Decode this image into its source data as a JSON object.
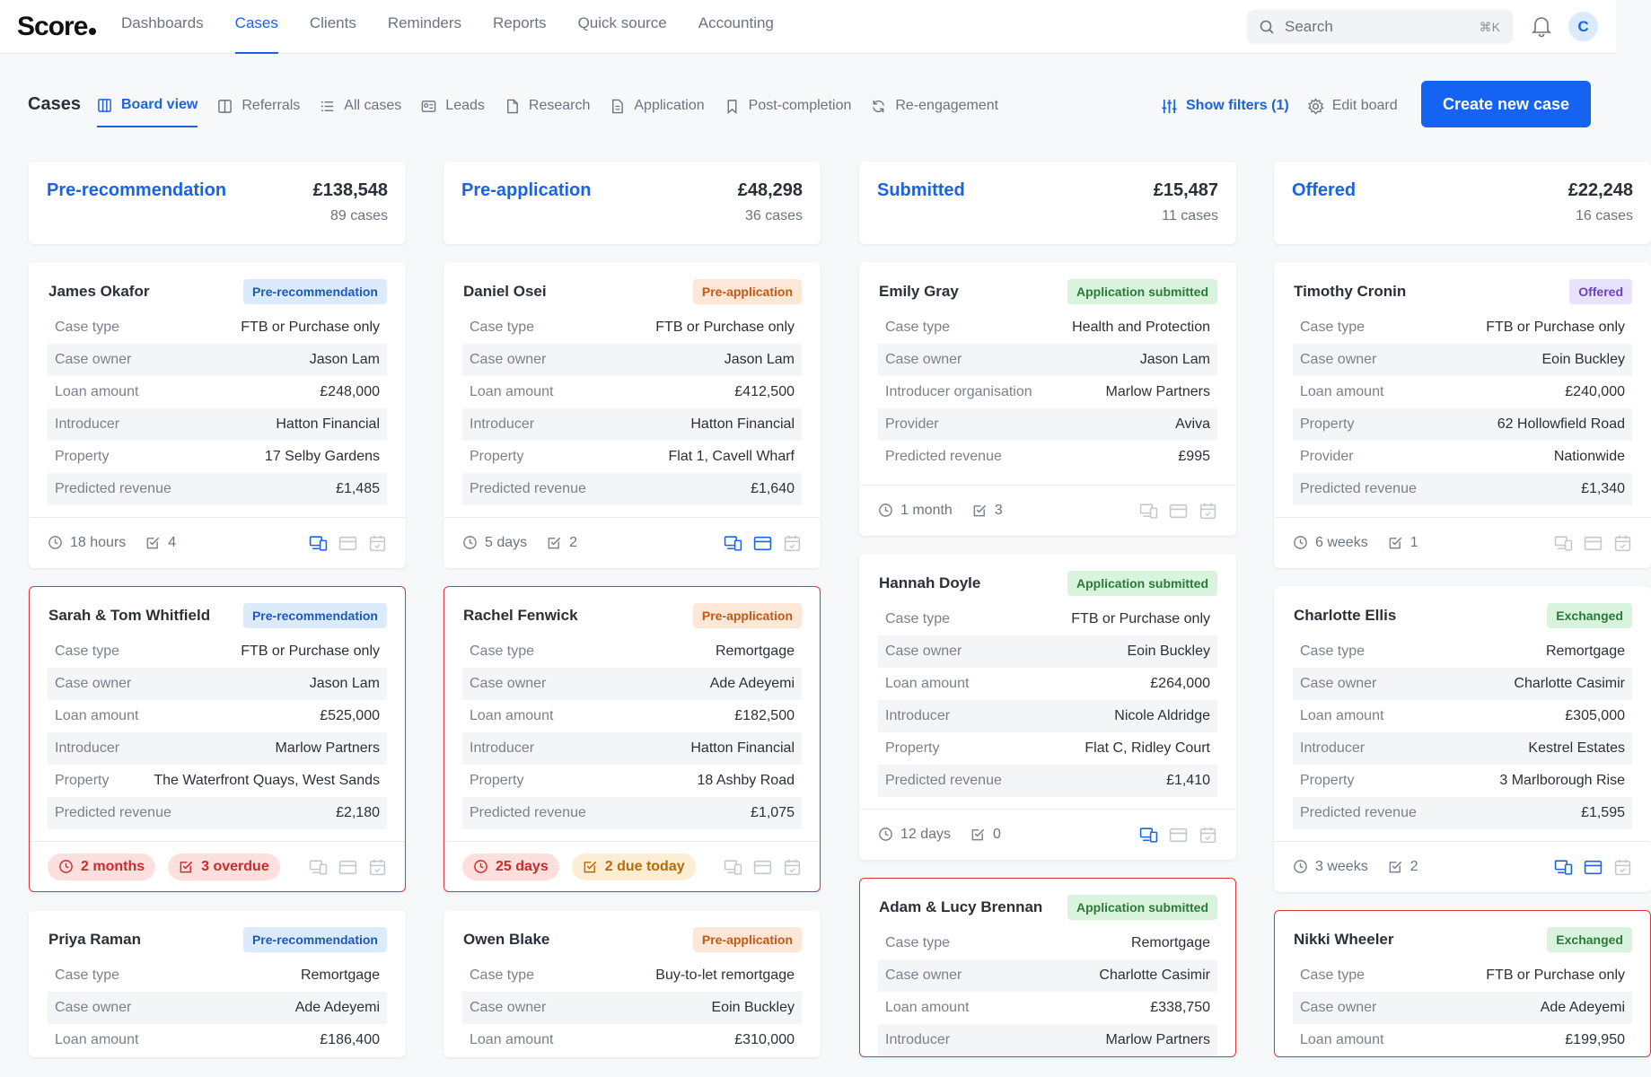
{
  "app": {
    "logo": "Score",
    "accent": "#1b63e0",
    "button": "#1463f3",
    "alert": "#d9363e"
  },
  "nav": {
    "items": [
      {
        "label": "Dashboards",
        "active": false
      },
      {
        "label": "Cases",
        "active": true
      },
      {
        "label": "Clients",
        "active": false
      },
      {
        "label": "Reminders",
        "active": false
      },
      {
        "label": "Reports",
        "active": false
      },
      {
        "label": "Quick source",
        "active": false
      },
      {
        "label": "Accounting",
        "active": false
      }
    ],
    "search_placeholder": "Search",
    "search_shortcut": "⌘K",
    "avatar_initial": "C"
  },
  "toolbar": {
    "title": "Cases",
    "tabs": [
      {
        "label": "Board view",
        "icon": "board-icon",
        "active": true
      },
      {
        "label": "Referrals",
        "icon": "columns-icon",
        "active": false
      },
      {
        "label": "All cases",
        "icon": "list-icon",
        "active": false
      },
      {
        "label": "Leads",
        "icon": "id-card-icon",
        "active": false
      },
      {
        "label": "Research",
        "icon": "document-icon",
        "active": false
      },
      {
        "label": "Application",
        "icon": "file-text-icon",
        "active": false
      },
      {
        "label": "Post-completion",
        "icon": "bookmark-icon",
        "active": false
      },
      {
        "label": "Re-engagement",
        "icon": "refresh-icon",
        "active": false
      }
    ],
    "show_filters": "Show filters (1)",
    "edit_board": "Edit board",
    "create_button": "Create new case"
  },
  "columns": [
    {
      "title": "Pre-recommendation",
      "total": "£138,548",
      "count": "89 cases",
      "cards": [
        {
          "name": "James Okafor",
          "badge": "Pre-recommendation",
          "badge_type": "pre-rec",
          "alert": false,
          "rows": [
            [
              "Case type",
              "FTB or Purchase only"
            ],
            [
              "Case owner",
              "Jason Lam"
            ],
            [
              "Loan amount",
              "£248,000"
            ],
            [
              "Introducer",
              "Hatton Financial"
            ],
            [
              "Property",
              "17 Selby Gardens"
            ],
            [
              "Predicted revenue",
              "£1,485"
            ]
          ],
          "time": "18 hours",
          "tasks": "4",
          "pills": [],
          "actions_active": [
            true,
            false,
            false
          ]
        },
        {
          "name": "Sarah & Tom Whitfield",
          "badge": "Pre-recommendation",
          "badge_type": "pre-rec",
          "alert": true,
          "rows": [
            [
              "Case type",
              "FTB or Purchase only"
            ],
            [
              "Case owner",
              "Jason Lam"
            ],
            [
              "Loan amount",
              "£525,000"
            ],
            [
              "Introducer",
              "Marlow Partners"
            ],
            [
              "Property",
              "The Waterfront Quays, West Sands"
            ],
            [
              "Predicted revenue",
              "£2,180"
            ]
          ],
          "time": "",
          "tasks": "",
          "pills": [
            {
              "text": "2 months",
              "type": "red",
              "icon": "clock-icon"
            },
            {
              "text": "3 overdue",
              "type": "red",
              "icon": "task-icon"
            }
          ],
          "actions_active": [
            false,
            false,
            false
          ]
        },
        {
          "name": "Priya Raman",
          "badge": "Pre-recommendation",
          "badge_type": "pre-rec",
          "alert": false,
          "rows": [
            [
              "Case type",
              "Remortgage"
            ],
            [
              "Case owner",
              "Ade Adeyemi"
            ],
            [
              "Loan amount",
              "£186,400"
            ]
          ],
          "time": "",
          "tasks": "",
          "pills": [],
          "actions_active": [
            false,
            false,
            false
          ],
          "truncated": true
        }
      ]
    },
    {
      "title": "Pre-application",
      "total": "£48,298",
      "count": "36 cases",
      "cards": [
        {
          "name": "Daniel Osei",
          "badge": "Pre-application",
          "badge_type": "pre-app",
          "alert": false,
          "rows": [
            [
              "Case type",
              "FTB or Purchase only"
            ],
            [
              "Case owner",
              "Jason Lam"
            ],
            [
              "Loan amount",
              "£412,500"
            ],
            [
              "Introducer",
              "Hatton Financial"
            ],
            [
              "Property",
              "Flat 1, Cavell Wharf"
            ],
            [
              "Predicted revenue",
              "£1,640"
            ]
          ],
          "time": "5 days",
          "tasks": "2",
          "pills": [],
          "actions_active": [
            true,
            true,
            false
          ]
        },
        {
          "name": "Rachel Fenwick",
          "badge": "Pre-application",
          "badge_type": "pre-app",
          "alert": true,
          "rows": [
            [
              "Case type",
              "Remortgage"
            ],
            [
              "Case owner",
              "Ade Adeyemi"
            ],
            [
              "Loan amount",
              "£182,500"
            ],
            [
              "Introducer",
              "Hatton Financial"
            ],
            [
              "Property",
              "18 Ashby Road"
            ],
            [
              "Predicted revenue",
              "£1,075"
            ]
          ],
          "time": "",
          "tasks": "",
          "pills": [
            {
              "text": "25 days",
              "type": "red",
              "icon": "clock-icon"
            },
            {
              "text": "2 due today",
              "type": "amber",
              "icon": "task-icon"
            }
          ],
          "actions_active": [
            false,
            false,
            false
          ]
        },
        {
          "name": "Owen Blake",
          "badge": "Pre-application",
          "badge_type": "pre-app",
          "alert": false,
          "rows": [
            [
              "Case type",
              "Buy-to-let remortgage"
            ],
            [
              "Case owner",
              "Eoin Buckley"
            ],
            [
              "Loan amount",
              "£310,000"
            ]
          ],
          "time": "",
          "tasks": "",
          "pills": [],
          "actions_active": [
            false,
            false,
            false
          ],
          "truncated": true
        }
      ]
    },
    {
      "title": "Submitted",
      "total": "£15,487",
      "count": "11 cases",
      "cards": [
        {
          "name": "Emily Gray",
          "badge": "Application submitted",
          "badge_type": "submitted",
          "alert": false,
          "rows": [
            [
              "Case type",
              "Health and Protection"
            ],
            [
              "Case owner",
              "Jason Lam"
            ],
            [
              "Introducer organisation",
              "Marlow Partners"
            ],
            [
              "Provider",
              "Aviva"
            ],
            [
              "Predicted revenue",
              "£995"
            ]
          ],
          "time": "1 month",
          "tasks": "3",
          "pills": [],
          "actions_active": [
            false,
            false,
            false
          ]
        },
        {
          "name": "Hannah Doyle",
          "badge": "Application submitted",
          "badge_type": "submitted",
          "alert": false,
          "rows": [
            [
              "Case type",
              "FTB or Purchase only"
            ],
            [
              "Case owner",
              "Eoin Buckley"
            ],
            [
              "Loan amount",
              "£264,000"
            ],
            [
              "Introducer",
              "Nicole Aldridge"
            ],
            [
              "Property",
              "Flat C, Ridley Court"
            ],
            [
              "Predicted revenue",
              "£1,410"
            ]
          ],
          "time": "12 days",
          "tasks": "0",
          "pills": [],
          "actions_active": [
            true,
            false,
            false
          ]
        },
        {
          "name": "Adam & Lucy Brennan",
          "badge": "Application submitted",
          "badge_type": "submitted",
          "alert": true,
          "rows": [
            [
              "Case type",
              "Remortgage"
            ],
            [
              "Case owner",
              "Charlotte Casimir"
            ],
            [
              "Loan amount",
              "£338,750"
            ],
            [
              "Introducer",
              "Marlow Partners"
            ]
          ],
          "time": "",
          "tasks": "",
          "pills": [],
          "actions_active": [
            false,
            false,
            false
          ],
          "truncated": true
        }
      ]
    },
    {
      "title": "Offered",
      "total": "£22,248",
      "count": "16 cases",
      "cards": [
        {
          "name": "Timothy Cronin",
          "badge": "Offered",
          "badge_type": "offered",
          "alert": false,
          "rows": [
            [
              "Case type",
              "FTB or Purchase only"
            ],
            [
              "Case owner",
              "Eoin Buckley"
            ],
            [
              "Loan amount",
              "£240,000"
            ],
            [
              "Property",
              "62 Hollowfield Road"
            ],
            [
              "Provider",
              "Nationwide"
            ],
            [
              "Predicted revenue",
              "£1,340"
            ]
          ],
          "time": "6 weeks",
          "tasks": "1",
          "pills": [],
          "actions_active": [
            false,
            false,
            false
          ]
        },
        {
          "name": "Charlotte Ellis",
          "badge": "Exchanged",
          "badge_type": "exchanged",
          "alert": false,
          "rows": [
            [
              "Case type",
              "Remortgage"
            ],
            [
              "Case owner",
              "Charlotte Casimir"
            ],
            [
              "Loan amount",
              "£305,000"
            ],
            [
              "Introducer",
              "Kestrel Estates"
            ],
            [
              "Property",
              "3 Marlborough Rise"
            ],
            [
              "Predicted revenue",
              "£1,595"
            ]
          ],
          "time": "3 weeks",
          "tasks": "2",
          "pills": [],
          "actions_active": [
            true,
            true,
            false
          ]
        },
        {
          "name": "Nikki Wheeler",
          "badge": "Exchanged",
          "badge_type": "exchanged",
          "alert": true,
          "rows": [
            [
              "Case type",
              "FTB or Purchase only"
            ],
            [
              "Case owner",
              "Ade Adeyemi"
            ],
            [
              "Loan amount",
              "£199,950"
            ]
          ],
          "time": "",
          "tasks": "",
          "pills": [],
          "actions_active": [
            false,
            false,
            false
          ],
          "truncated": true
        }
      ]
    }
  ]
}
